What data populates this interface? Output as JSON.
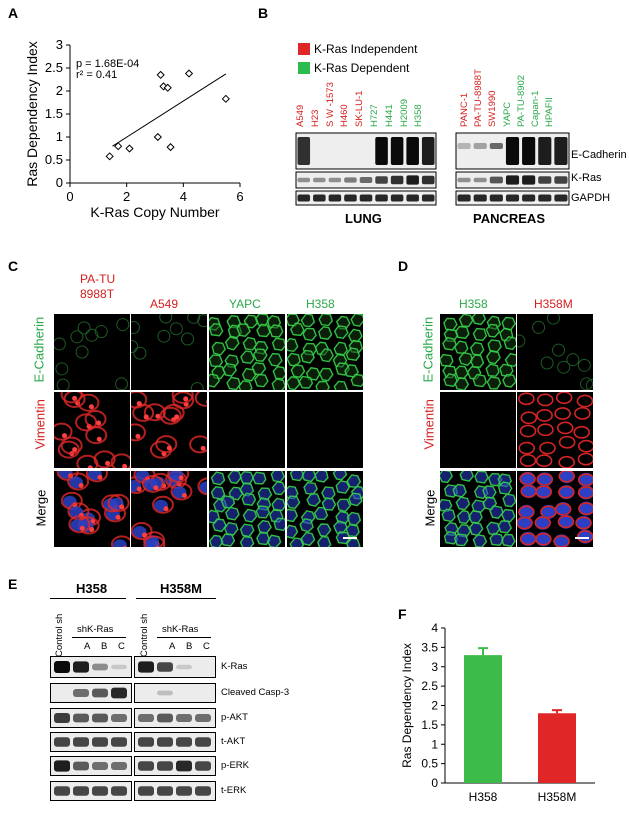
{
  "panelA": {
    "label": "A",
    "stats": [
      "p = 1.68E-04",
      "r² = 0.41"
    ],
    "chart_data": {
      "type": "scatter",
      "xlabel": "K-Ras Copy Number",
      "ylabel": "Ras Dependency Index",
      "xlim": [
        0,
        6
      ],
      "ylim": [
        0,
        3
      ],
      "xticks": [
        "0",
        "2",
        "4",
        "6"
      ],
      "yticks": [
        "0",
        "0.5",
        "1",
        "1.5",
        "2",
        "2.5",
        "3"
      ],
      "points": [
        [
          1.4,
          0.58
        ],
        [
          1.7,
          0.8
        ],
        [
          2.1,
          0.75
        ],
        [
          3.1,
          1.0
        ],
        [
          3.2,
          2.35
        ],
        [
          3.3,
          2.1
        ],
        [
          3.45,
          2.07
        ],
        [
          3.55,
          0.78
        ],
        [
          4.2,
          2.38
        ],
        [
          5.5,
          1.83
        ]
      ],
      "fit_line": [
        [
          1.5,
          0.8
        ],
        [
          5.5,
          2.37
        ]
      ]
    }
  },
  "panelB": {
    "label": "B",
    "legend": [
      {
        "text": "K-Ras Independent",
        "color": "#e02626"
      },
      {
        "text": "K-Ras Dependent",
        "color": "#2dbb4e"
      }
    ],
    "lung_lanes": [
      {
        "name": "A549",
        "color": "red"
      },
      {
        "name": "H23",
        "color": "red"
      },
      {
        "name": "S W -1573",
        "color": "red"
      },
      {
        "name": "H460",
        "color": "red"
      },
      {
        "name": "SK-LU-1",
        "color": "red"
      },
      {
        "name": "H727",
        "color": "green"
      },
      {
        "name": "H441",
        "color": "green"
      },
      {
        "name": "H2009",
        "color": "green"
      },
      {
        "name": "H358",
        "color": "green"
      }
    ],
    "pancreas_lanes": [
      {
        "name": "PANC-1",
        "color": "red"
      },
      {
        "name": "PA-TU-8988T",
        "color": "red"
      },
      {
        "name": "SW1990",
        "color": "red"
      },
      {
        "name": "YAPC",
        "color": "green"
      },
      {
        "name": "PA-TU-8902",
        "color": "green"
      },
      {
        "name": "Capan-1",
        "color": "green"
      },
      {
        "name": "HPAFII",
        "color": "green"
      }
    ],
    "rows": [
      "E-Cadherin",
      "K-Ras",
      "GAPDH"
    ],
    "group_lung": "LUNG",
    "group_pancreas": "PANCREAS"
  },
  "panelC": {
    "label": "C",
    "col_pa_tu_1": "PA-TU",
    "col_pa_tu_2": "8988T",
    "col_a549": "A549",
    "col_yapc": "YAPC",
    "col_h358": "H358",
    "row_ecad": "E-Cadherin",
    "row_vim": "Vimentin",
    "row_merge": "Merge"
  },
  "panelD": {
    "label": "D",
    "col_h358": "H358",
    "col_h358m": "H358M",
    "row_ecad": "E-Cadherin",
    "row_vim": "Vimentin",
    "row_merge": "Merge"
  },
  "panelE": {
    "label": "E",
    "group1": "H358",
    "group2": "H358M",
    "control": "Control sh",
    "shk": "shK-Ras",
    "lanes": [
      "A",
      "B",
      "C"
    ],
    "rows": [
      "K-Ras",
      "Cleaved Casp-3",
      "p-AKT",
      "t-AKT",
      "p-ERK",
      "t-ERK"
    ]
  },
  "panelF": {
    "label": "F",
    "chart_data": {
      "type": "bar",
      "categories": [
        "H358",
        "H358M"
      ],
      "values": [
        3.3,
        1.8
      ],
      "errors": [
        0.18,
        0.08
      ],
      "colors": [
        "#3dbb4a",
        "#e02626"
      ],
      "ylabel": "Ras Dependency Index",
      "ylim": [
        0,
        4
      ],
      "yticks": [
        "0",
        "0.5",
        "1",
        "1.5",
        "2",
        "2.5",
        "3",
        "3.5",
        "4"
      ]
    }
  }
}
